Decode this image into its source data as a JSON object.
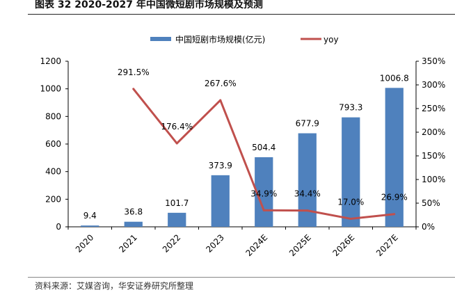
{
  "title": "图表 32 2020-2027 年中国微短剧市场规模及预测",
  "source": "资料来源：艾媒咨询，华安证券研究所整理",
  "chart_data": {
    "type": "bar+line",
    "categories": [
      "2020",
      "2021",
      "2022",
      "2023",
      "2024E",
      "2025E",
      "2026E",
      "2027E"
    ],
    "series": [
      {
        "name": "中国短剧市场规模(亿元)",
        "type": "bar",
        "axis": "left",
        "color": "#4f81bd",
        "values": [
          9.4,
          36.8,
          101.7,
          373.9,
          504.4,
          677.9,
          793.3,
          1006.8
        ],
        "labels": [
          "9.4",
          "36.8",
          "101.7",
          "373.9",
          "504.4",
          "677.9",
          "793.3",
          "1006.8"
        ]
      },
      {
        "name": "yoy",
        "type": "line",
        "axis": "right",
        "color": "#c0504d",
        "values": [
          null,
          291.5,
          176.4,
          267.6,
          34.9,
          34.4,
          17.0,
          26.9
        ],
        "labels": [
          "",
          "291.5%",
          "176.4%",
          "267.6%",
          "34.9%",
          "34.4%",
          "17.0%",
          "26.9%"
        ]
      }
    ],
    "y_left": {
      "lim": [
        0,
        1200
      ],
      "ticks": [
        "0",
        "200",
        "400",
        "600",
        "800",
        "1000",
        "1200"
      ]
    },
    "y_right": {
      "lim": [
        0,
        350
      ],
      "ticks": [
        "0%",
        "50%",
        "100%",
        "150%",
        "200%",
        "250%",
        "300%",
        "350%"
      ]
    },
    "legend": "top",
    "grid": false
  }
}
